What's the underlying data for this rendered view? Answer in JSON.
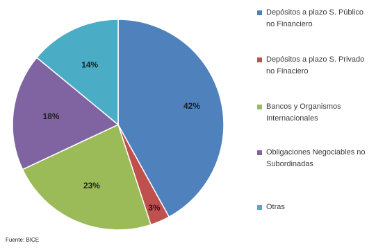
{
  "chart_data": {
    "type": "pie",
    "title": "",
    "slices": [
      {
        "label": "Depósitos a plazo S. Público no Financiero",
        "value": 42,
        "display": "42%",
        "color": "#4f81bd"
      },
      {
        "label": "Depósitos a plazo S. Privado no Finaciero",
        "value": 3,
        "display": "3%",
        "color": "#c0504d"
      },
      {
        "label": "Bancos y Organismos Internacionales",
        "value": 23,
        "display": "23%",
        "color": "#9bbb59"
      },
      {
        "label": "Obligaciones Negociables no Subordinadas",
        "value": 18,
        "display": "18%",
        "color": "#8064a2"
      },
      {
        "label": "Otras",
        "value": 14,
        "display": "14%",
        "color": "#4bacc6"
      }
    ],
    "legend_position": "right"
  },
  "source": "Fuente: BICE"
}
